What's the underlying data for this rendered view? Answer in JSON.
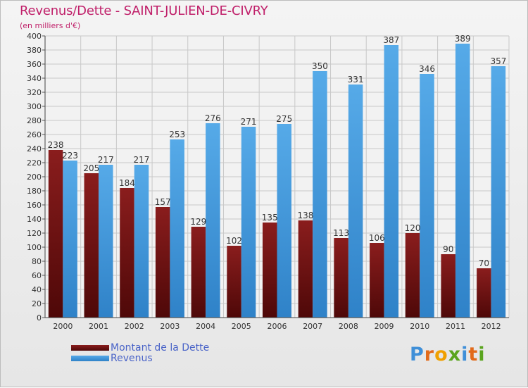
{
  "title": "Revenus/Dette - SAINT-JULIEN-DE-CIVRY",
  "subtitle": "(en milliers d'€)",
  "colors": {
    "dette": "#7a1414",
    "revenus": "#4aa2e4",
    "title": "#c0206a",
    "legend_text": "#4a64c8"
  },
  "legend": {
    "dette": "Montant de la Dette",
    "revenus": "Revenus"
  },
  "logo": {
    "letters": [
      "P",
      "r",
      "o",
      "x",
      "i",
      "t",
      "i"
    ],
    "colors": [
      "#3f8fd8",
      "#e26a1a",
      "#f0a000",
      "#5aa41e",
      "#3f8fd8",
      "#e26a1a",
      "#5aa41e"
    ]
  },
  "chart_data": {
    "type": "bar",
    "title": "Revenus/Dette - SAINT-JULIEN-DE-CIVRY",
    "subtitle": "(en milliers d'€)",
    "xlabel": "",
    "ylabel": "",
    "ylim": [
      0,
      400
    ],
    "ytick_step": 20,
    "grid": true,
    "categories": [
      "2000",
      "2001",
      "2002",
      "2003",
      "2004",
      "2005",
      "2006",
      "2007",
      "2008",
      "2009",
      "2010",
      "2011",
      "2012"
    ],
    "series": [
      {
        "name": "Montant de la Dette",
        "values": [
          238,
          205,
          184,
          157,
          129,
          102,
          135,
          138,
          113,
          106,
          120,
          90,
          70
        ]
      },
      {
        "name": "Revenus",
        "values": [
          223,
          217,
          217,
          253,
          276,
          271,
          275,
          350,
          331,
          387,
          346,
          389,
          357
        ]
      }
    ]
  }
}
